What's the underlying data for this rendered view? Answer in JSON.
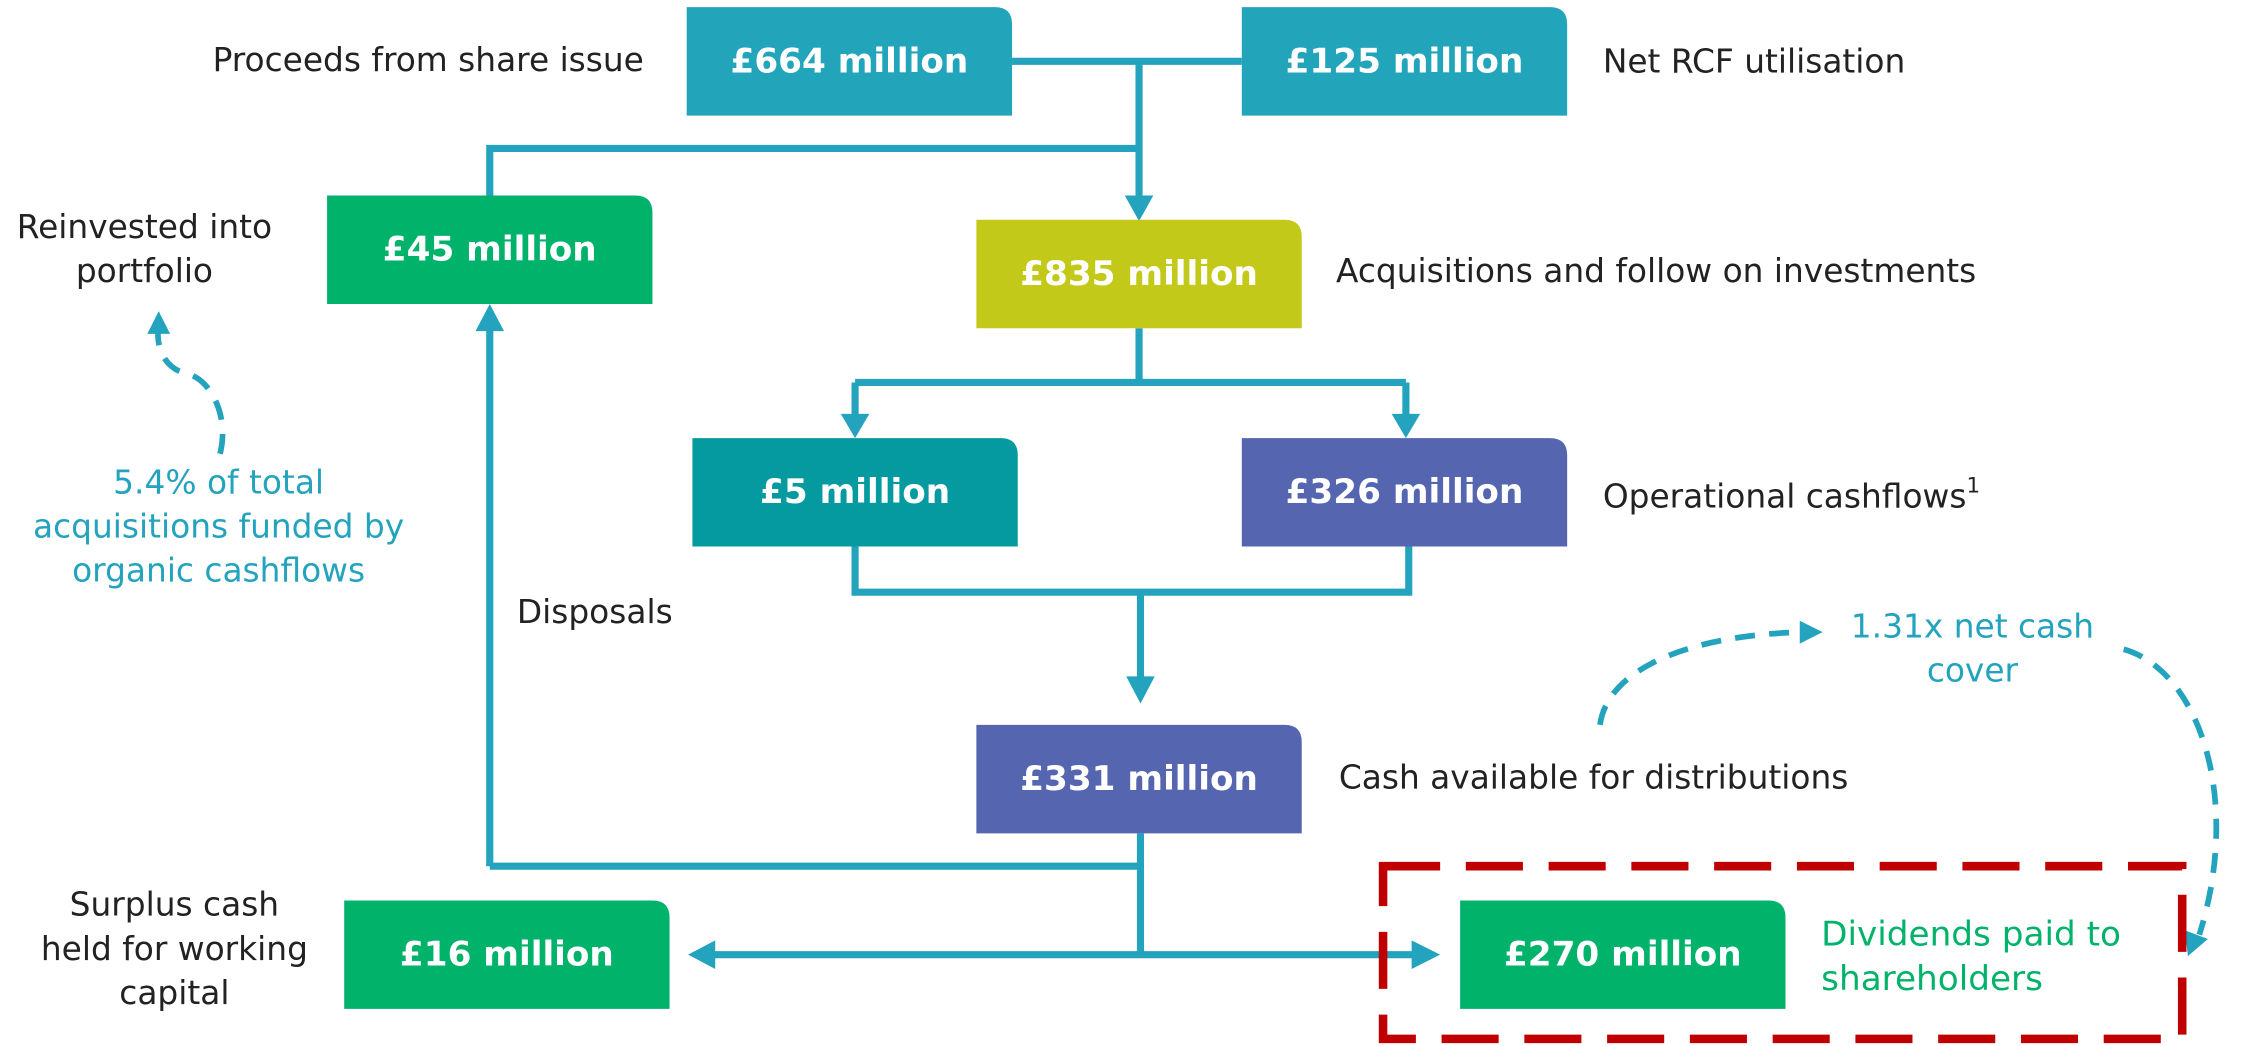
{
  "nodes": [
    {
      "value": "£664 million",
      "caption": [
        "Proceeds from share issue"
      ]
    },
    {
      "value": "£125 million",
      "caption": [
        "Net RCF utilisation"
      ]
    },
    {
      "value": "£45 million",
      "caption": [
        "Reinvested into",
        "portfolio"
      ]
    },
    {
      "value": "£835 million",
      "caption": [
        "Acquisitions and follow on investments"
      ]
    },
    {
      "value": "£5 million",
      "caption": []
    },
    {
      "value": "£326 million",
      "caption": [
        "Operational cashflows"
      ],
      "footnote": "1"
    },
    {
      "value": "£331 million",
      "caption": [
        "Cash available for distributions"
      ]
    },
    {
      "value": "£16 million",
      "caption": [
        "Surplus cash",
        "held for working",
        "capital"
      ]
    },
    {
      "value": "£270 million",
      "caption": [
        "Dividends paid to",
        "shareholders"
      ]
    }
  ],
  "labels": {
    "disposals": "Disposals"
  },
  "annotations": [
    {
      "lines": [
        "5.4% of total",
        "acquisitions funded by",
        "organic cashflows"
      ]
    },
    {
      "lines": [
        "1.31x net cash",
        "cover"
      ]
    }
  ]
}
